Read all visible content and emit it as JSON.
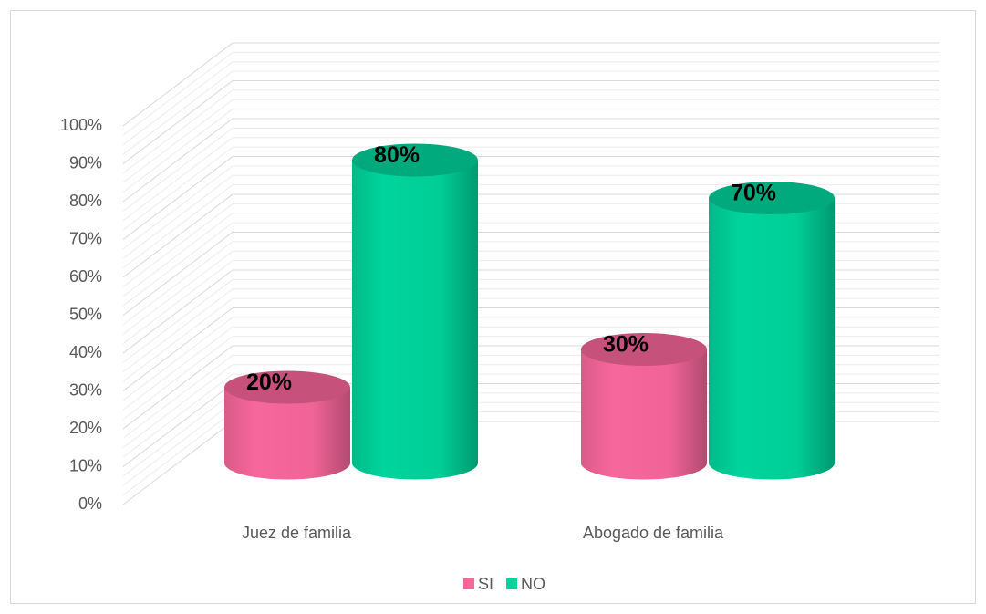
{
  "chart_data": {
    "type": "bar3d",
    "categories": [
      "Juez de familia",
      "Abogado de familia"
    ],
    "series": [
      {
        "name": "SI",
        "color": "#f7679b",
        "values": [
          20,
          30
        ],
        "value_labels": [
          "20%",
          "30%"
        ]
      },
      {
        "name": "NO",
        "color": "#00d49c",
        "values": [
          80,
          70
        ],
        "value_labels": [
          "80%",
          "70%"
        ]
      }
    ],
    "ylim": [
      0,
      100
    ],
    "yticks": [
      {
        "value": 0,
        "label": "0%"
      },
      {
        "value": 10,
        "label": "10%"
      },
      {
        "value": 20,
        "label": "20%"
      },
      {
        "value": 30,
        "label": "30%"
      },
      {
        "value": 40,
        "label": "40%"
      },
      {
        "value": 50,
        "label": "50%"
      },
      {
        "value": 60,
        "label": "60%"
      },
      {
        "value": 70,
        "label": "70%"
      },
      {
        "value": 80,
        "label": "80%"
      },
      {
        "value": 90,
        "label": "90%"
      },
      {
        "value": 100,
        "label": "100%"
      }
    ],
    "grid": true,
    "legend": "bottom"
  }
}
